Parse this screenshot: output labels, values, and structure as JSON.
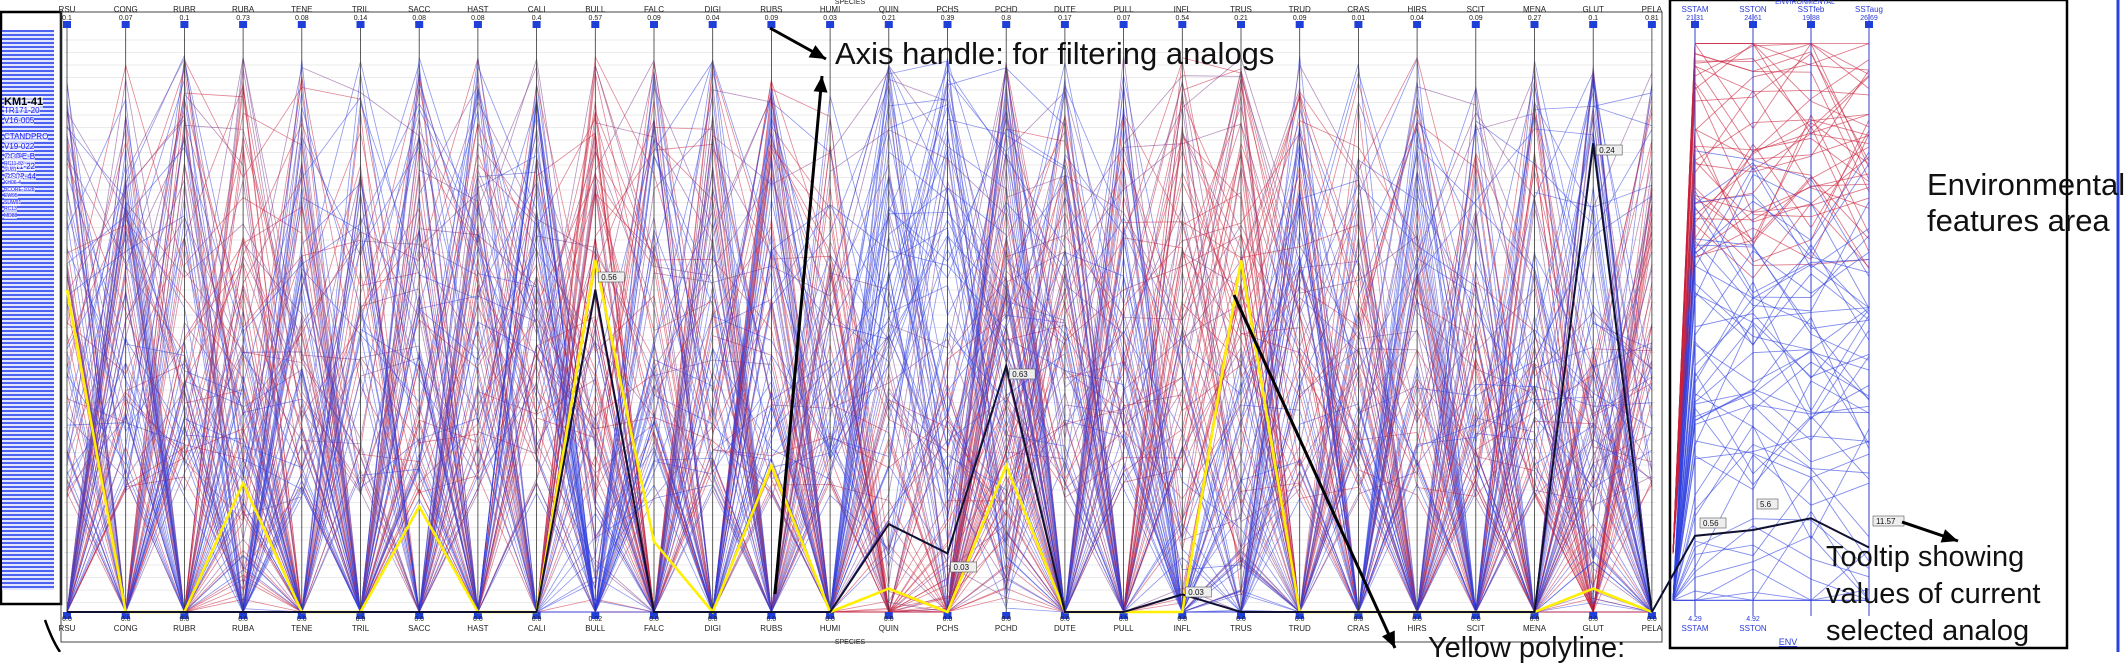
{
  "panels": {
    "species_title": "SPECIES",
    "env_title": "ENVIRONMENTAL",
    "env_bottom_link": "ENV"
  },
  "species_axes": [
    {
      "code": "RSU",
      "top": "0.1",
      "bot": "0.0"
    },
    {
      "code": "CONG",
      "top": "0.07",
      "bot": "0.0"
    },
    {
      "code": "RUBR",
      "top": "0.1",
      "bot": "0.0"
    },
    {
      "code": "RUBA",
      "top": "0.73",
      "bot": "0.0"
    },
    {
      "code": "TENE",
      "top": "0.08",
      "bot": "0.0"
    },
    {
      "code": "TRIL",
      "top": "0.14",
      "bot": "0.0"
    },
    {
      "code": "SACC",
      "top": "0.08",
      "bot": "0.0"
    },
    {
      "code": "HAST",
      "top": "0.08",
      "bot": "0.0"
    },
    {
      "code": "CALI",
      "top": "0.4",
      "bot": "0.0"
    },
    {
      "code": "BULL",
      "top": "0.57",
      "bot": "0.02"
    },
    {
      "code": "FALC",
      "top": "0.09",
      "bot": "0.0"
    },
    {
      "code": "DIGI",
      "top": "0.04",
      "bot": "0.0"
    },
    {
      "code": "RUBS",
      "top": "0.09",
      "bot": "0.0"
    },
    {
      "code": "HUMI",
      "top": "0.03",
      "bot": "0.0"
    },
    {
      "code": "QUIN",
      "top": "0.21",
      "bot": "0.0"
    },
    {
      "code": "PCHS",
      "top": "0.39",
      "bot": "0.0"
    },
    {
      "code": "PCHD",
      "top": "0.8",
      "bot": "0.0"
    },
    {
      "code": "DUTE",
      "top": "0.17",
      "bot": "0.0"
    },
    {
      "code": "PULL",
      "top": "0.07",
      "bot": "0.0"
    },
    {
      "code": "INFL",
      "top": "0.54",
      "bot": "0.0"
    },
    {
      "code": "TRUS",
      "top": "0.21",
      "bot": "0.0"
    },
    {
      "code": "TRUD",
      "top": "0.09",
      "bot": "0.0"
    },
    {
      "code": "CRAS",
      "top": "0.01",
      "bot": "0.0"
    },
    {
      "code": "HIRS",
      "top": "0.04",
      "bot": "0.0"
    },
    {
      "code": "SCIT",
      "top": "0.09",
      "bot": "0.0"
    },
    {
      "code": "MENA",
      "top": "0.27",
      "bot": "0.0"
    },
    {
      "code": "GLUT",
      "top": "0.1",
      "bot": "0.0"
    },
    {
      "code": "PELA",
      "top": "0.81",
      "bot": "0.0"
    }
  ],
  "env_axes": [
    {
      "code": "SSTAM",
      "top": "21.31",
      "bot": "4.29"
    },
    {
      "code": "SSTON",
      "top": "24.61",
      "bot": "4.92"
    },
    {
      "code": "SSTfeb",
      "top": "19.88",
      "bot": ""
    },
    {
      "code": "SSTaug",
      "top": "26.69",
      "bot": ""
    }
  ],
  "selected_polyline": [
    0.55,
    0.0,
    0.0,
    0.22,
    0.0,
    0.0,
    0.18,
    0.0,
    0.0,
    0.6,
    0.12,
    0.0,
    0.25,
    0.0,
    0.04,
    0.0,
    0.25,
    0.0,
    0.0,
    0.0,
    0.6,
    0.0,
    0.0,
    0.0,
    0.0,
    0.0,
    0.04,
    0.0
  ],
  "current_polyline": [
    0.0,
    0.0,
    0.0,
    0.0,
    0.0,
    0.0,
    0.0,
    0.0,
    0.0,
    0.55,
    0.0,
    0.0,
    0.0,
    0.0,
    0.15,
    0.1,
    0.42,
    0.0,
    0.0,
    0.03,
    0.0,
    0.0,
    0.0,
    0.0,
    0.0,
    0.0,
    0.8,
    0.0
  ],
  "tooltip_values": {
    "BULL": "0.56",
    "PCHD": "0.63",
    "PCHS": "0.03",
    "GLUT": "0.24",
    "INFL": "0.03",
    "env_left": "0.56",
    "env_mid": "5.6",
    "env_right": "11.57"
  },
  "analog_list": [
    "KM1-41",
    "TR171-20",
    "V16-005",
    "CTANDPRO",
    "V19-022",
    "CORE-B",
    "KN11-22",
    "GS02-44",
    "V21-034",
    "RC11-83",
    "SU81",
    "V22-174",
    "KH06-4",
    "BCORE-1028",
    "EW95",
    "SUW91",
    "RC13",
    "MD88"
  ],
  "annotations": {
    "axis_handle": "Axis handle: for filtering analogs",
    "env_area_line1": "Environmental",
    "env_area_line2": "features area",
    "tooltip_line1": "Tooltip showing",
    "tooltip_line2": "values of current",
    "tooltip_line3": "selected analog",
    "yellow_polyline": "Yellow polyline:"
  },
  "colors": {
    "species_red": "#c8203a",
    "species_blue": "#2f3fe0",
    "species_purple": "#7a3a8a",
    "selected_yellow": "#ffef00",
    "current_black": "#101030",
    "axis_handle_blue": "#1f3fd6"
  }
}
